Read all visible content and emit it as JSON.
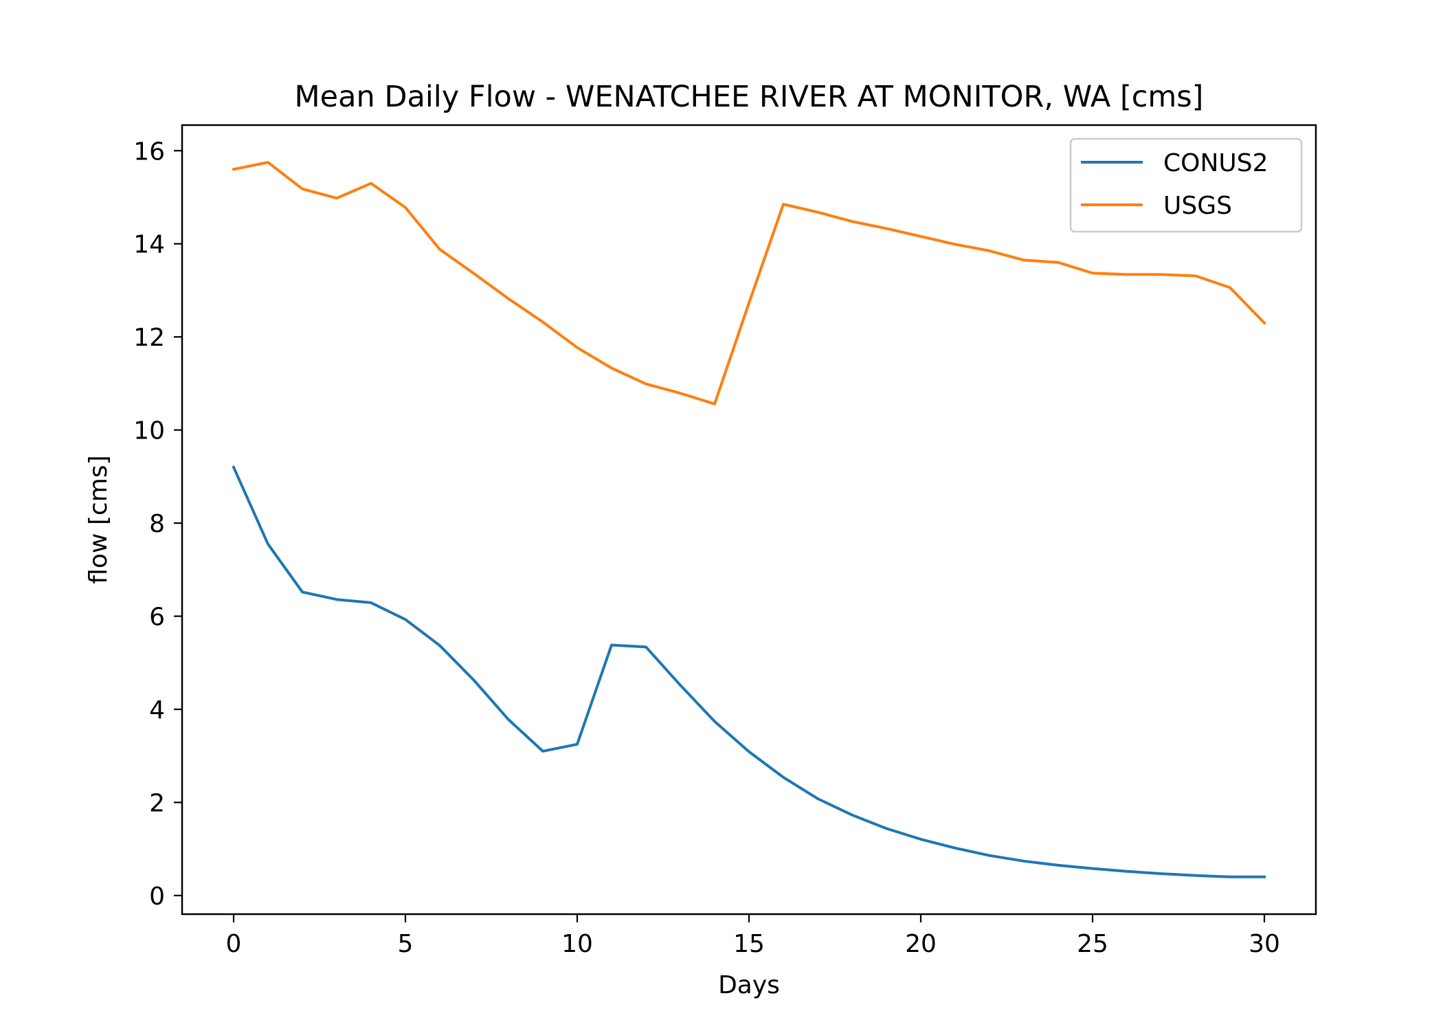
{
  "chart_data": {
    "type": "line",
    "title": "Mean Daily Flow - WENATCHEE RIVER AT MONITOR, WA [cms]",
    "xlabel": "Days",
    "ylabel": "flow [cms]",
    "xlim": [
      -1.5,
      31.5
    ],
    "ylim": [
      -0.4,
      16.55
    ],
    "xticks": [
      0,
      5,
      10,
      15,
      20,
      25,
      30
    ],
    "yticks": [
      0,
      2,
      4,
      6,
      8,
      10,
      12,
      14,
      16
    ],
    "grid": false,
    "legend_position": "top-right",
    "x": [
      0,
      1,
      2,
      3,
      4,
      5,
      6,
      7,
      8,
      9,
      10,
      11,
      12,
      13,
      14,
      15,
      16,
      17,
      18,
      19,
      20,
      21,
      22,
      23,
      24,
      25,
      26,
      27,
      28,
      29,
      30
    ],
    "series": [
      {
        "name": "CONUS2",
        "color": "#1f77b4",
        "values": [
          9.2,
          7.55,
          6.52,
          6.36,
          6.29,
          5.93,
          5.37,
          4.62,
          3.78,
          3.1,
          3.25,
          5.38,
          5.34,
          4.52,
          3.74,
          3.09,
          2.54,
          2.08,
          1.73,
          1.44,
          1.21,
          1.02,
          0.86,
          0.74,
          0.65,
          0.58,
          0.52,
          0.47,
          0.43,
          0.4,
          0.4
        ]
      },
      {
        "name": "USGS",
        "color": "#ff7f0e",
        "values": [
          15.6,
          15.75,
          15.18,
          14.98,
          15.3,
          14.78,
          13.88,
          13.36,
          12.82,
          12.32,
          11.77,
          11.33,
          10.99,
          10.79,
          10.56,
          12.73,
          14.85,
          14.68,
          14.48,
          14.33,
          14.16,
          13.99,
          13.85,
          13.65,
          13.6,
          13.37,
          13.34,
          13.34,
          13.31,
          13.06,
          12.3
        ]
      }
    ]
  }
}
